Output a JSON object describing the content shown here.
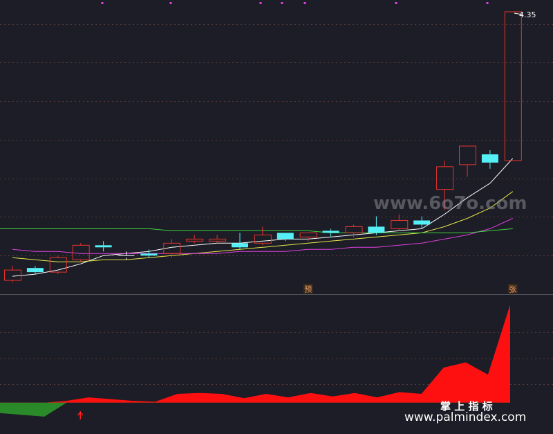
{
  "chart_data": [
    {
      "type": "candlestick",
      "title": "",
      "price_label": "4.35",
      "markers": [
        {
          "index": 13,
          "label": "预"
        },
        {
          "index": 22,
          "label": "张"
        }
      ],
      "candles": [
        {
          "o": 3.05,
          "c": 3.1,
          "h": 3.12,
          "l": 3.04,
          "color": "red"
        },
        {
          "o": 3.11,
          "c": 3.09,
          "h": 3.12,
          "l": 3.08,
          "color": "cyan"
        },
        {
          "o": 3.09,
          "c": 3.16,
          "h": 3.17,
          "l": 3.08,
          "color": "red"
        },
        {
          "o": 3.15,
          "c": 3.22,
          "h": 3.23,
          "l": 3.14,
          "color": "red"
        },
        {
          "o": 3.22,
          "c": 3.21,
          "h": 3.24,
          "l": 3.19,
          "color": "cyan"
        },
        {
          "o": 3.16,
          "c": 3.17,
          "h": 3.19,
          "l": 3.15,
          "color": "white"
        },
        {
          "o": 3.18,
          "c": 3.17,
          "h": 3.2,
          "l": 3.16,
          "color": "cyan"
        },
        {
          "o": 3.18,
          "c": 3.23,
          "h": 3.25,
          "l": 3.16,
          "color": "red"
        },
        {
          "o": 3.24,
          "c": 3.25,
          "h": 3.27,
          "l": 3.23,
          "color": "red"
        },
        {
          "o": 3.24,
          "c": 3.25,
          "h": 3.27,
          "l": 3.23,
          "color": "red"
        },
        {
          "o": 3.23,
          "c": 3.21,
          "h": 3.28,
          "l": 3.2,
          "color": "cyan"
        },
        {
          "o": 3.23,
          "c": 3.27,
          "h": 3.31,
          "l": 3.22,
          "color": "red"
        },
        {
          "o": 3.28,
          "c": 3.25,
          "h": 3.28,
          "l": 3.24,
          "color": "cyan"
        },
        {
          "o": 3.26,
          "c": 3.28,
          "h": 3.28,
          "l": 3.24,
          "color": "red"
        },
        {
          "o": 3.29,
          "c": 3.28,
          "h": 3.3,
          "l": 3.26,
          "color": "cyan"
        },
        {
          "o": 3.28,
          "c": 3.31,
          "h": 3.32,
          "l": 3.26,
          "color": "red"
        },
        {
          "o": 3.31,
          "c": 3.28,
          "h": 3.36,
          "l": 3.27,
          "color": "cyan"
        },
        {
          "o": 3.3,
          "c": 3.34,
          "h": 3.37,
          "l": 3.29,
          "color": "red"
        },
        {
          "o": 3.34,
          "c": 3.32,
          "h": 3.36,
          "l": 3.3,
          "color": "cyan"
        },
        {
          "o": 3.49,
          "c": 3.6,
          "h": 3.63,
          "l": 3.39,
          "color": "red"
        },
        {
          "o": 3.61,
          "c": 3.7,
          "h": 3.7,
          "l": 3.55,
          "color": "red"
        },
        {
          "o": 3.66,
          "c": 3.62,
          "h": 3.68,
          "l": 3.59,
          "color": "cyan"
        },
        {
          "o": 3.63,
          "c": 4.35,
          "h": 4.35,
          "l": 3.63,
          "color": "red"
        }
      ],
      "ma_lines": [
        {
          "color": "#ffffff",
          "values": [
            3.07,
            3.08,
            3.1,
            3.13,
            3.17,
            3.18,
            3.19,
            3.21,
            3.22,
            3.23,
            3.23,
            3.24,
            3.25,
            3.25,
            3.26,
            3.27,
            3.28,
            3.29,
            3.3,
            3.37,
            3.45,
            3.52,
            3.64
          ]
        },
        {
          "color": "#e8e84a",
          "values": [
            3.16,
            3.15,
            3.14,
            3.14,
            3.15,
            3.15,
            3.16,
            3.17,
            3.18,
            3.19,
            3.2,
            3.21,
            3.22,
            3.23,
            3.24,
            3.25,
            3.26,
            3.27,
            3.28,
            3.31,
            3.35,
            3.4,
            3.48
          ]
        },
        {
          "color": "#e040e0",
          "values": [
            3.2,
            3.19,
            3.19,
            3.18,
            3.18,
            3.18,
            3.18,
            3.18,
            3.18,
            3.18,
            3.19,
            3.19,
            3.19,
            3.2,
            3.2,
            3.21,
            3.21,
            3.22,
            3.23,
            3.25,
            3.27,
            3.3,
            3.35
          ]
        },
        {
          "color": "#40d040",
          "values": [
            3.3,
            3.3,
            3.3,
            3.3,
            3.3,
            3.3,
            3.3,
            3.29,
            3.29,
            3.29,
            3.29,
            3.29,
            3.29,
            3.29,
            3.28,
            3.28,
            3.28,
            3.28,
            3.28,
            3.28,
            3.28,
            3.29,
            3.3
          ]
        }
      ],
      "ylim": [
        3.0,
        4.38
      ]
    },
    {
      "type": "area",
      "title": "掌 上 指 标",
      "values": [
        -0.6,
        -0.7,
        -0.8,
        0.1,
        0.3,
        0.2,
        0.1,
        0.05,
        0.5,
        0.55,
        0.5,
        0.25,
        0.5,
        0.3,
        0.55,
        0.35,
        0.55,
        0.3,
        0.6,
        0.5,
        2.0,
        2.3,
        1.6,
        5.6
      ],
      "ylim": [
        -1.2,
        6.0
      ],
      "arrow_index": 3
    }
  ],
  "watermark": "www.6o7o.com",
  "footer_url": "www.palmindex.com",
  "colors": {
    "background": "#1c1d26",
    "up": "#e8352e",
    "down": "#55f0f5",
    "grid": "#5a3a3a",
    "divider": "#505258",
    "area_pos": "#ff1010",
    "area_neg": "#2a8a2a"
  }
}
